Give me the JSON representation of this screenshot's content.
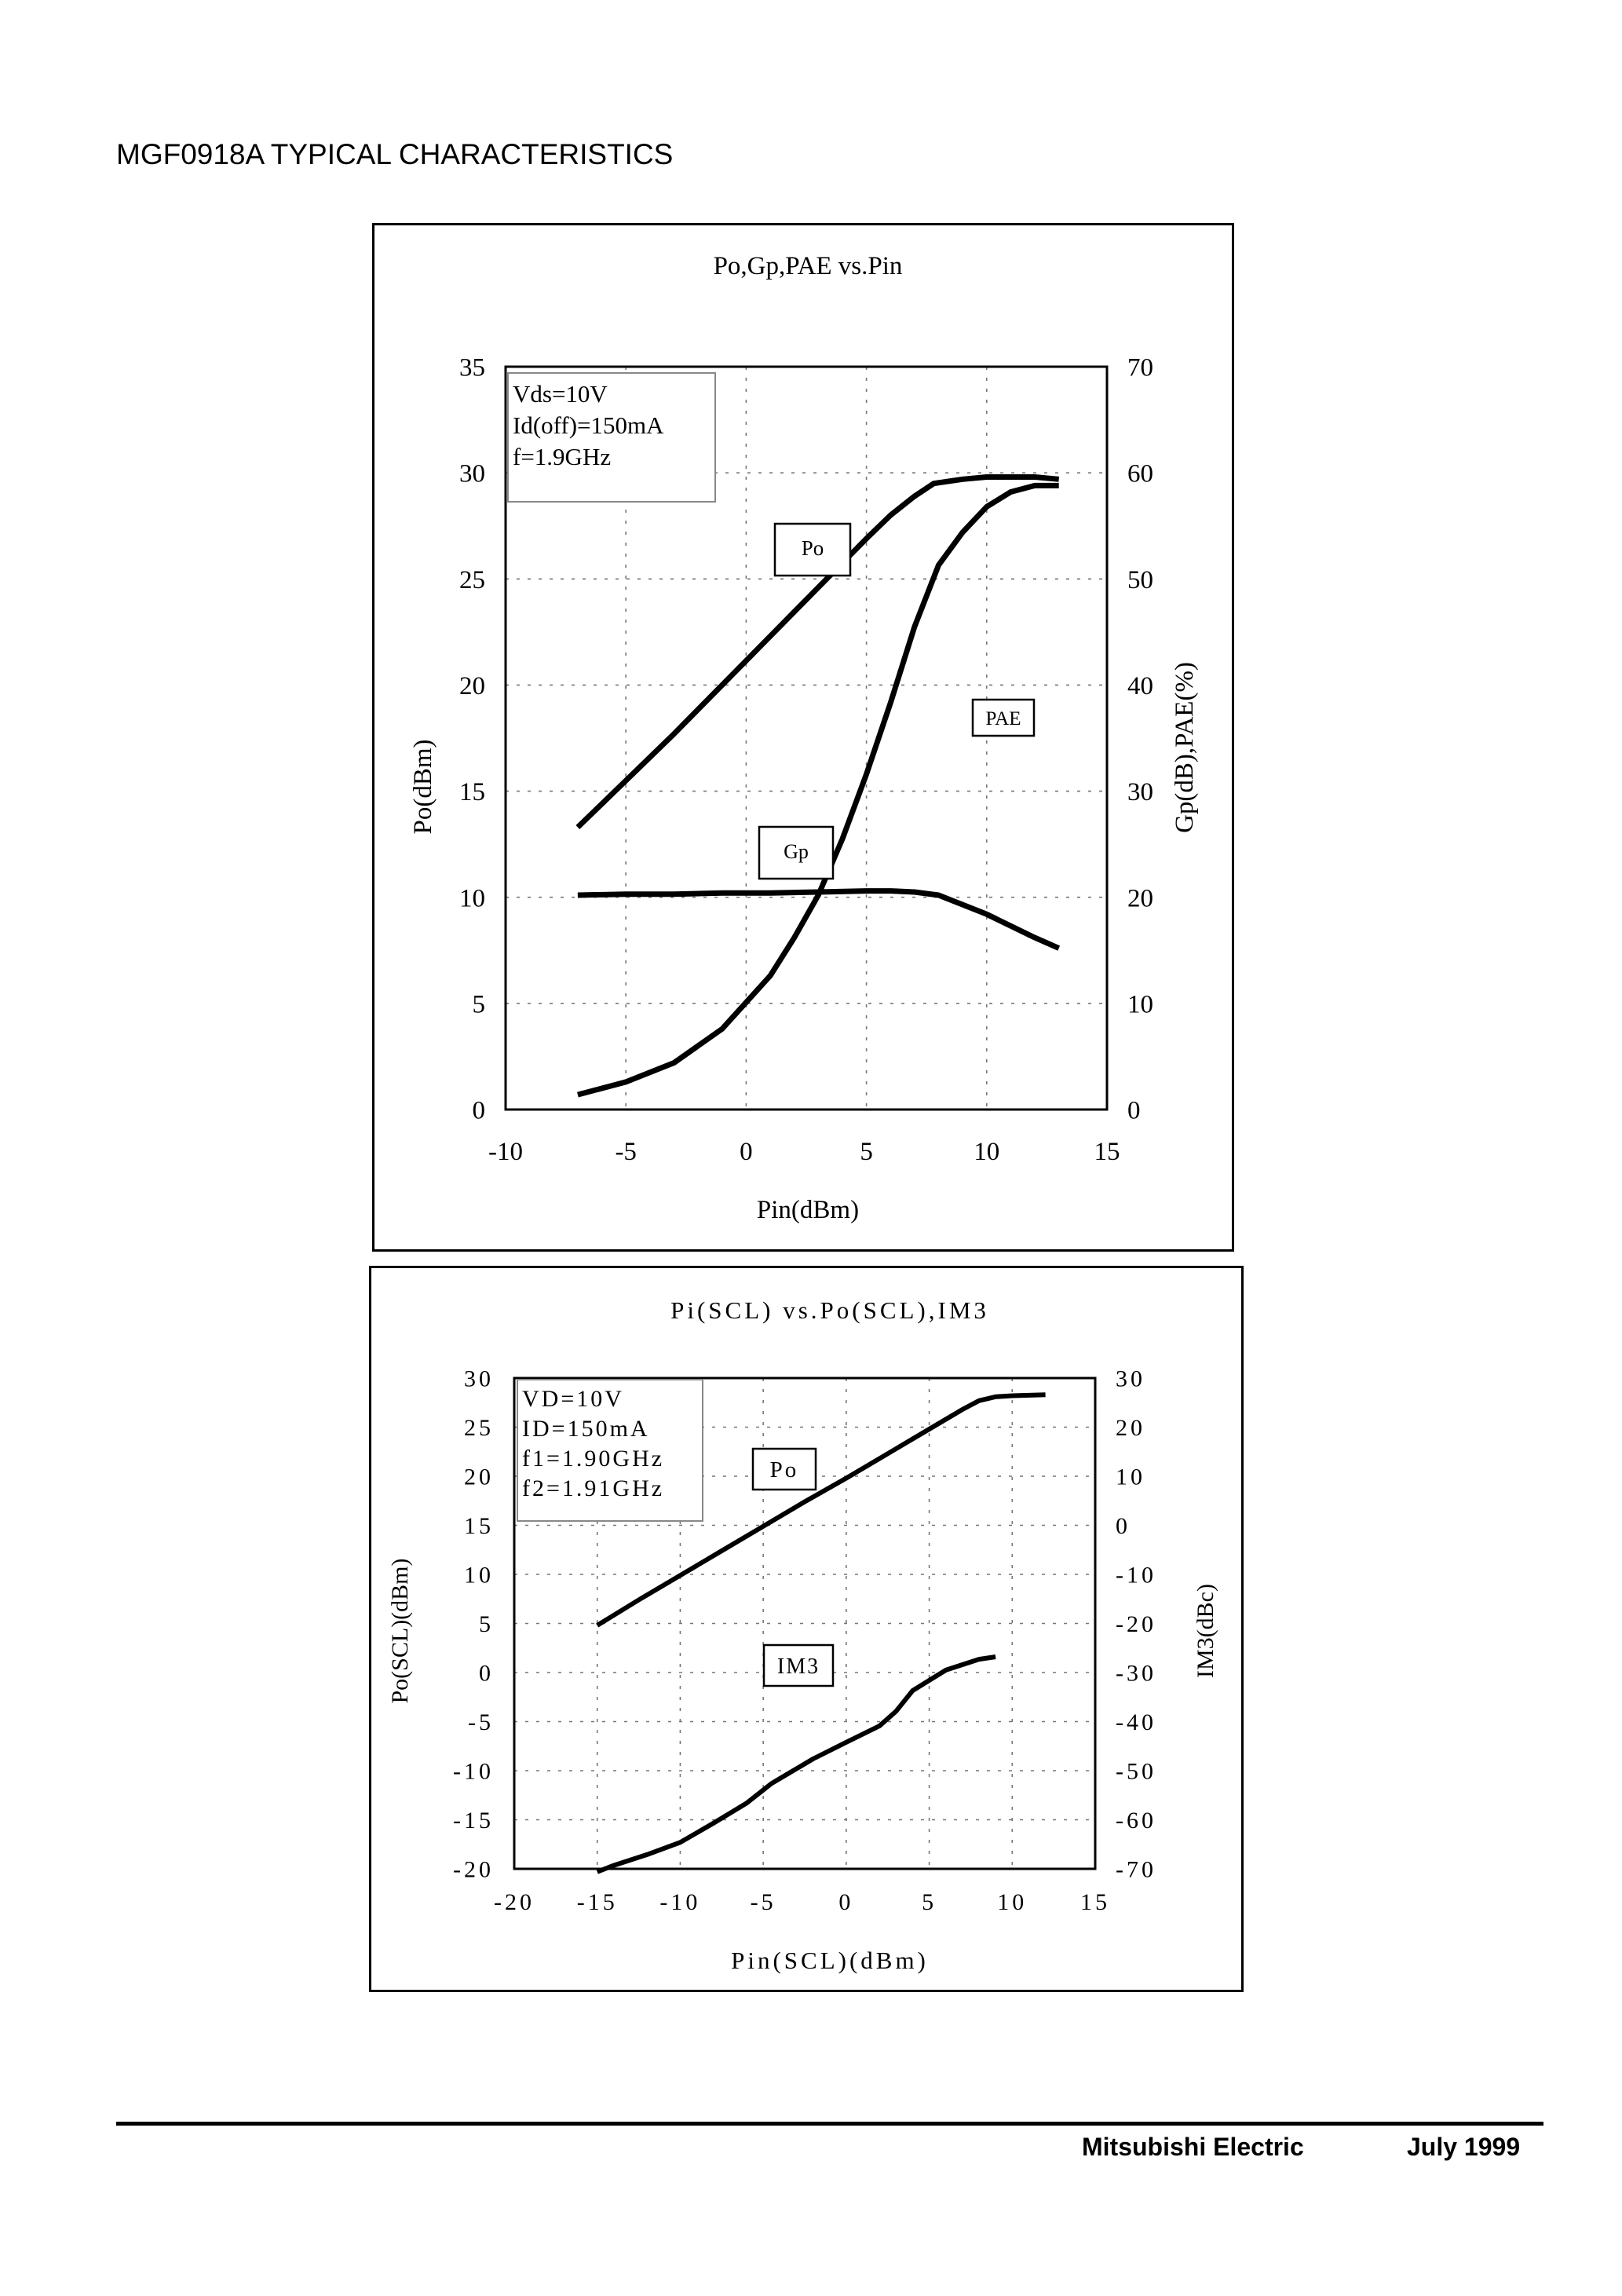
{
  "page": {
    "title": "MGF0918A TYPICAL CHARACTERISTICS"
  },
  "footer": {
    "company": "Mitsubishi Electric",
    "date": "July 1999"
  },
  "chart_data": [
    {
      "type": "line",
      "title": "Po,Gp,PAE vs.Pin",
      "xlabel": "Pin(dBm)",
      "ylabel": "Po(dBm)",
      "y2label": "Gp(dB),PAE(%)",
      "xlim": [
        -10,
        15
      ],
      "ylim": [
        0,
        35
      ],
      "y2lim": [
        0,
        70
      ],
      "xticks": [
        "-10",
        "-5",
        "0",
        "5",
        "10",
        "15"
      ],
      "yticks": [
        "0",
        "5",
        "10",
        "15",
        "20",
        "25",
        "30",
        "35"
      ],
      "y2ticks": [
        "0",
        "10",
        "20",
        "30",
        "40",
        "50",
        "60",
        "70"
      ],
      "grid": true,
      "conditions": [
        "Vds=10V",
        "Id(off)=150mA",
        "f=1.9GHz"
      ],
      "series": [
        {
          "name": "Po",
          "label": "Po",
          "axis": "left",
          "x": [
            -7,
            -5,
            -3,
            -1,
            1,
            3,
            5,
            6,
            7,
            7.8,
            9,
            10,
            11,
            12,
            13
          ],
          "y": [
            13.3,
            15.5,
            17.7,
            20,
            22.3,
            24.6,
            26.9,
            28,
            28.9,
            29.5,
            29.7,
            29.8,
            29.8,
            29.8,
            29.7
          ]
        },
        {
          "name": "Gp",
          "label": "Gp",
          "axis": "right",
          "x": [
            -7,
            -5,
            -3,
            -1,
            1,
            3,
            5,
            6,
            7,
            8,
            10,
            12,
            13
          ],
          "y": [
            20.2,
            20.3,
            20.3,
            20.4,
            20.4,
            20.5,
            20.6,
            20.6,
            20.5,
            20.2,
            18.4,
            16.2,
            15.2
          ]
        },
        {
          "name": "PAE",
          "label": "PAE",
          "axis": "right",
          "x": [
            -7,
            -5,
            -3,
            -1,
            1,
            2,
            3,
            4,
            5,
            6,
            7,
            8,
            9,
            10,
            11,
            12,
            13
          ],
          "y": [
            1.4,
            2.6,
            4.4,
            7.6,
            12.6,
            16.2,
            20.2,
            25.5,
            31.6,
            38.3,
            45.5,
            51.3,
            54.4,
            56.8,
            58.2,
            58.8,
            58.8
          ]
        }
      ]
    },
    {
      "type": "line",
      "title": "Pi(SCL) vs.Po(SCL),IM3",
      "xlabel": "Pin(SCL)(dBm)",
      "ylabel": "Po(SCL)(dBm)",
      "y2label": "IM3(dBc)",
      "xlim": [
        -20,
        15
      ],
      "ylim": [
        -20,
        30
      ],
      "y2lim": [
        -70,
        30
      ],
      "xticks": [
        "-20",
        "-15",
        "-10",
        "-5",
        "0",
        "5",
        "10",
        "15"
      ],
      "yticks": [
        "-20",
        "-15",
        "-10",
        "-5",
        "0",
        "5",
        "10",
        "15",
        "20",
        "25",
        "30"
      ],
      "y2ticks": [
        "-70",
        "-60",
        "-50",
        "-40",
        "-30",
        "-20",
        "-10",
        "0",
        "10",
        "20",
        "30"
      ],
      "grid": true,
      "conditions": [
        "VD=10V",
        "ID=150mA",
        "f1=1.90GHz",
        "f2=1.91GHz"
      ],
      "series": [
        {
          "name": "Po",
          "label": "Po",
          "axis": "left",
          "x": [
            -15,
            -12.5,
            -10,
            -7.5,
            -5,
            -2.5,
            0,
            2.5,
            5,
            7,
            8,
            9,
            10,
            12
          ],
          "y": [
            4.8,
            7.4,
            9.9,
            12.4,
            14.9,
            17.4,
            19.8,
            22.3,
            24.8,
            26.8,
            27.7,
            28.1,
            28.2,
            28.3
          ]
        },
        {
          "name": "IM3",
          "label": "IM3",
          "axis": "right",
          "x": [
            -15,
            -14,
            -12,
            -10,
            -8,
            -6,
            -4.5,
            -2,
            0,
            2,
            3,
            4,
            6,
            8,
            9
          ],
          "y": [
            -70.6,
            -69.3,
            -67.1,
            -64.6,
            -60.7,
            -56.6,
            -52.6,
            -47.6,
            -44.2,
            -40.9,
            -37.9,
            -33.7,
            -29.5,
            -27.3,
            -26.8
          ]
        }
      ]
    }
  ]
}
